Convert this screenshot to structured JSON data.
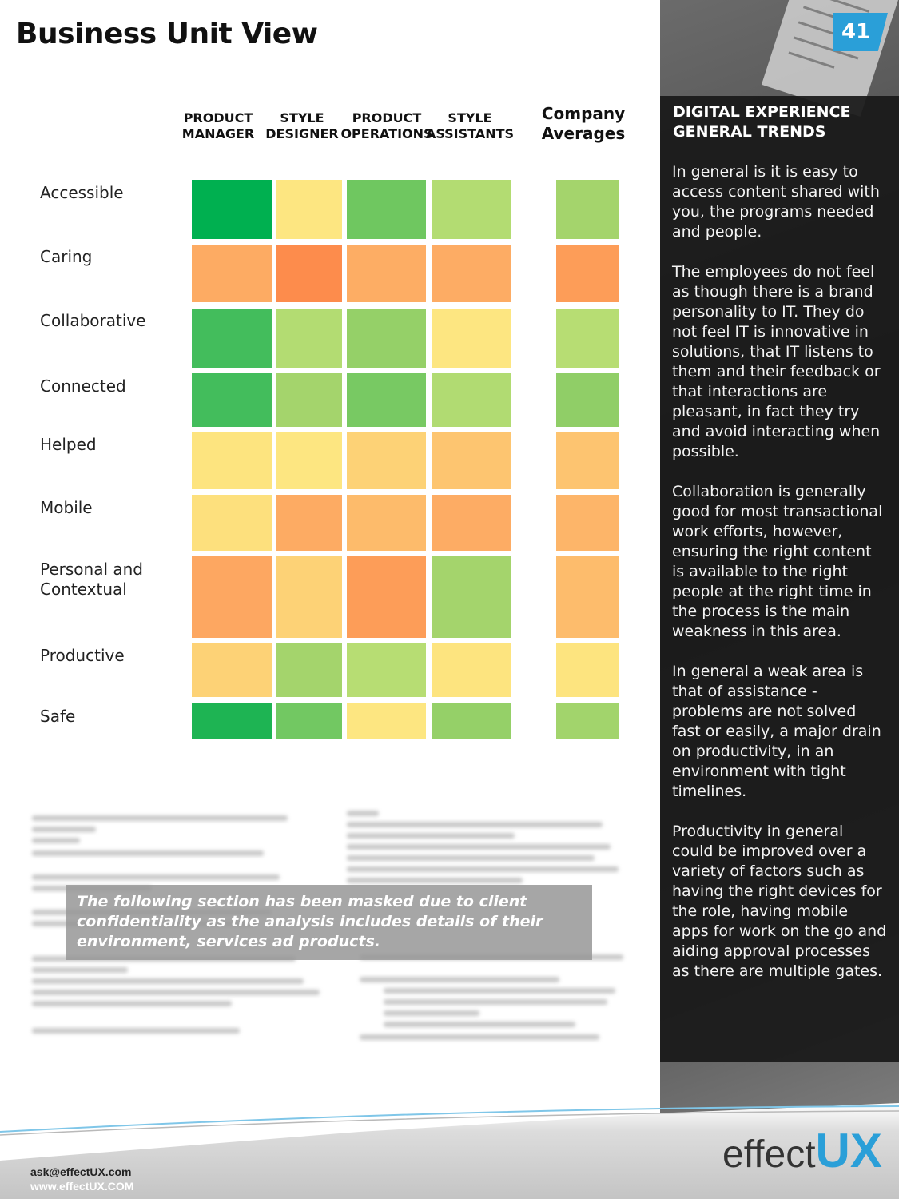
{
  "page": {
    "title": "Business Unit View",
    "number": "41"
  },
  "chart_data": {
    "type": "heatmap",
    "title": "Business Unit View",
    "columns": [
      "PRODUCT MANAGER",
      "STYLE DESIGNER",
      "PRODUCT OPERATIONS",
      "STYLE ASSISTANTS",
      "Company Averages"
    ],
    "column_lines": [
      [
        "PRODUCT",
        "MANAGER"
      ],
      [
        "STYLE",
        "DESIGNER"
      ],
      [
        "PRODUCT",
        "OPERATIONS"
      ],
      [
        "STYLE",
        "ASSISTANTS"
      ],
      [
        "Company",
        "Averages"
      ]
    ],
    "rows": [
      "Accessible",
      "Caring",
      "Collaborative",
      "Connected",
      "Helped",
      "Mobile",
      "Personal and Contextual",
      "Productive",
      "Safe"
    ],
    "row_lines": [
      [
        "Accessible"
      ],
      [
        "Caring"
      ],
      [
        "Collaborative"
      ],
      [
        "Connected"
      ],
      [
        "Helped"
      ],
      [
        "Mobile"
      ],
      [
        "Personal and",
        "Contextual"
      ],
      [
        "Productive"
      ],
      [
        "Safe"
      ]
    ],
    "scale_note": "color scale from green (strong) through yellow to orange (weak)",
    "colors": [
      [
        "#00b050",
        "#fde681",
        "#6fc760",
        "#b3dc72",
        "#a4d46c"
      ],
      [
        "#fdab63",
        "#fd8c4c",
        "#fdad64",
        "#fdac64",
        "#fd9d58"
      ],
      [
        "#43bd5c",
        "#b3dc72",
        "#95d068",
        "#fde681",
        "#b7dd73"
      ],
      [
        "#43bd5c",
        "#a4d46c",
        "#78c963",
        "#b1db72",
        "#90ce67"
      ],
      [
        "#fde47f",
        "#fde681",
        "#fdd276",
        "#fdc570",
        "#fdc470"
      ],
      [
        "#fde07d",
        "#fdab63",
        "#fdbb6b",
        "#fdac64",
        "#fdb569"
      ],
      [
        "#fda761",
        "#fdd276",
        "#fd9d58",
        "#a4d46c",
        "#fdbc6c"
      ],
      [
        "#fdd276",
        "#a4d46c",
        "#b7dd73",
        "#fde47f",
        "#fde47f"
      ],
      [
        "#1eb453",
        "#72c862",
        "#fde681",
        "#95d068",
        "#a2d46c"
      ]
    ]
  },
  "sidebar": {
    "heading_lines": [
      "DIGITAL EXPERIENCE",
      "GENERAL TRENDS"
    ],
    "paragraphs": [
      "In general is it is easy to access content shared with you, the programs needed and people.",
      "The employees do not feel as though there is a brand personality to IT. They do not feel IT is innovative in solutions, that IT listens to them and their feedback or that interactions are pleasant, in fact they try and avoid interacting when possible.",
      "Collaboration is generally good for most transactional work efforts, however, ensuring the right content is available to the right people at the right time in the process is the main weakness in this area.",
      "In general a weak area is that of assistance - problems are not solved fast or easily, a major drain on productivity, in an environment with tight timelines.",
      "Productivity in general could be improved over a variety of factors such as having the right devices for the role, having mobile apps for work on the go and aiding approval processes as there are multiple gates."
    ]
  },
  "mask": {
    "text": "The following section has been masked due to client confidentiality as the analysis includes details of their environment, services ad products."
  },
  "footer": {
    "email": "ask@effectUX.com",
    "website": "www.effectUX.COM",
    "logo_effect": "effect",
    "logo_ux": "UX"
  },
  "theme": {
    "accent": "#2a9fd8",
    "panel": "#1e1e1e"
  }
}
